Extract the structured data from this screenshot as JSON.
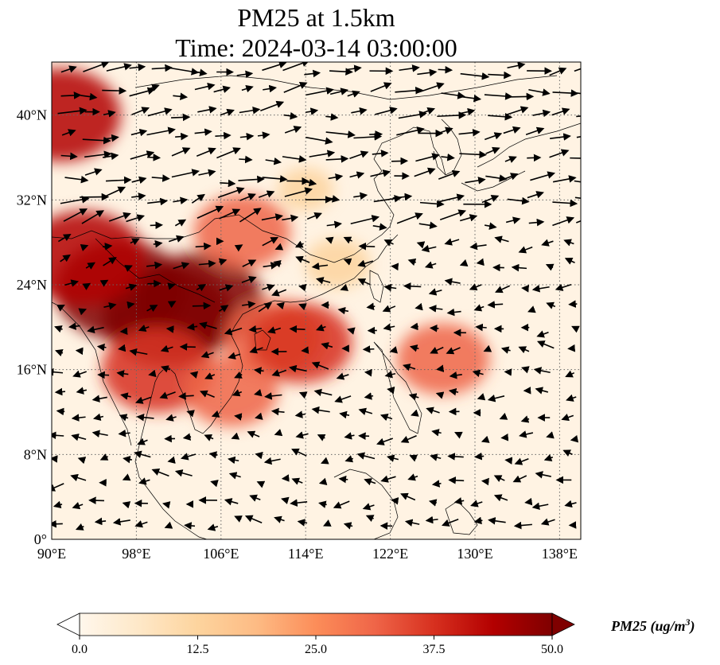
{
  "title": {
    "line1": "PM25 at 1.5km",
    "line2": "Time: 2024-03-14 03:00:00"
  },
  "map": {
    "lon_range": [
      90,
      140
    ],
    "lat_range": [
      0,
      45
    ],
    "grid": "dotted",
    "lon_ticks": [
      {
        "value": 90,
        "label": "90°E"
      },
      {
        "value": 98,
        "label": "98°E"
      },
      {
        "value": 106,
        "label": "106°E"
      },
      {
        "value": 114,
        "label": "114°E"
      },
      {
        "value": 122,
        "label": "122°E"
      },
      {
        "value": 130,
        "label": "130°E"
      },
      {
        "value": 138,
        "label": "138°E"
      }
    ],
    "lat_ticks": [
      {
        "value": 0,
        "label": "0°"
      },
      {
        "value": 8,
        "label": "8°N"
      },
      {
        "value": 16,
        "label": "16°N"
      },
      {
        "value": 24,
        "label": "24°N"
      },
      {
        "value": 32,
        "label": "32°N"
      },
      {
        "value": 40,
        "label": "40°N"
      }
    ],
    "colormap": "OrRd",
    "hotspots": [
      {
        "lon": 96.5,
        "lat": 23.5,
        "value": 50
      },
      {
        "lon": 101,
        "lat": 21,
        "value": 50
      },
      {
        "lon": 104,
        "lat": 22.5,
        "value": 48
      },
      {
        "lon": 93,
        "lat": 26.5,
        "value": 46
      },
      {
        "lon": 100,
        "lat": 16,
        "value": 40
      },
      {
        "lon": 108,
        "lat": 29,
        "value": 32
      },
      {
        "lon": 111,
        "lat": 19,
        "value": 34
      },
      {
        "lon": 113.5,
        "lat": 18.5,
        "value": 36
      },
      {
        "lon": 107,
        "lat": 14,
        "value": 30
      },
      {
        "lon": 127,
        "lat": 17,
        "value": 30
      },
      {
        "lon": 90.8,
        "lat": 40,
        "value": 45
      },
      {
        "lon": 117,
        "lat": 26,
        "value": 15
      },
      {
        "lon": 114,
        "lat": 33,
        "value": 10
      }
    ]
  },
  "colorbar": {
    "min": 0,
    "max": 50,
    "ticks": [
      "0.0",
      "12.5",
      "25.0",
      "37.5",
      "50.0"
    ],
    "label": "PM25 (ug/m",
    "label_sup": "3",
    "label_end": ")",
    "colors": [
      "#fff7ec",
      "#fee8c8",
      "#fdd49e",
      "#fdbb84",
      "#fc8d59",
      "#ef6548",
      "#d7301f",
      "#b30000",
      "#7f0000"
    ]
  }
}
